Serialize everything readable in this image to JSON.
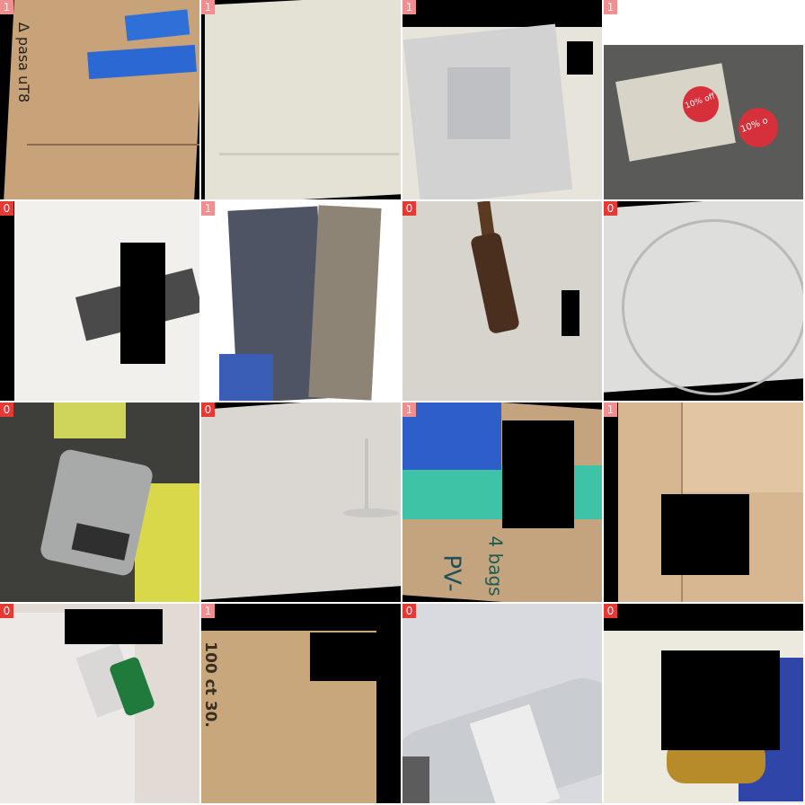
{
  "tiles": [
    {
      "label": "1",
      "text": "Δ pasa uT8"
    },
    {
      "label": "1"
    },
    {
      "label": "1"
    },
    {
      "label": "1",
      "text1": "10% off",
      "text2": "10% o"
    },
    {
      "label": "0"
    },
    {
      "label": "1"
    },
    {
      "label": "0"
    },
    {
      "label": "0"
    },
    {
      "label": "0"
    },
    {
      "label": "0"
    },
    {
      "label": "1",
      "text1": "4 bags",
      "text2": "PV-"
    },
    {
      "label": "1"
    },
    {
      "label": "0"
    },
    {
      "label": "1",
      "text": "100 ct 30."
    },
    {
      "label": "0"
    },
    {
      "label": "0"
    }
  ]
}
